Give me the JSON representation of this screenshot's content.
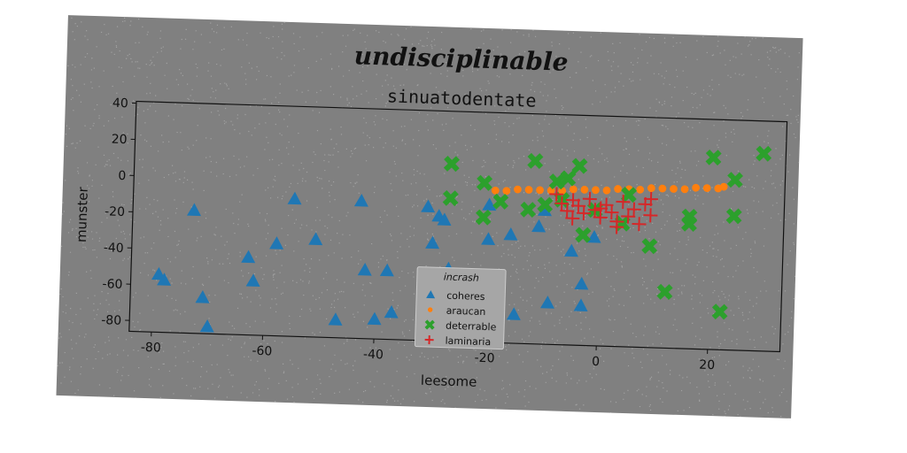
{
  "colors": {
    "card_bg": "#808080",
    "coheres": "#1f77b4",
    "araucan": "#ff7f0e",
    "deterrable": "#2ca02c",
    "laminaria": "#d62728"
  },
  "chart_data": {
    "type": "scatter",
    "suptitle": "undisciplinable",
    "title": "sinuatodentate",
    "xlabel": "leesome",
    "ylabel": "munster",
    "xlim": [
      -84,
      33
    ],
    "ylim": [
      -86,
      41
    ],
    "xticks": [
      -80,
      -60,
      -40,
      -20,
      0,
      20
    ],
    "yticks": [
      40,
      20,
      0,
      -20,
      -40,
      -60,
      -80
    ],
    "grid": false,
    "legend": {
      "title": "incrash",
      "placement": "lower center",
      "entries": [
        "coheres",
        "araucan",
        "deterrable",
        "laminaria"
      ]
    },
    "series": [
      {
        "name": "coheres",
        "marker": "triangle",
        "points": [
          [
            -79,
            -54
          ],
          [
            -78,
            -57
          ],
          [
            -73,
            -18
          ],
          [
            -71,
            -66
          ],
          [
            -70,
            -82
          ],
          [
            -63,
            -43
          ],
          [
            -62,
            -56
          ],
          [
            -58,
            -35
          ],
          [
            -55,
            -10
          ],
          [
            -51,
            -32
          ],
          [
            -47,
            -76
          ],
          [
            -43,
            -10
          ],
          [
            -42,
            -48
          ],
          [
            -40,
            -75
          ],
          [
            -38,
            -48
          ],
          [
            -37,
            -71
          ],
          [
            -31,
            -12
          ],
          [
            -30,
            -32
          ],
          [
            -29,
            -17
          ],
          [
            -28,
            -19
          ],
          [
            -27,
            -46
          ],
          [
            -20,
            -29
          ],
          [
            -20,
            -10
          ],
          [
            -16,
            -26
          ],
          [
            -15,
            -70
          ],
          [
            -11,
            -21
          ],
          [
            -10,
            -12
          ],
          [
            -9,
            -63
          ],
          [
            -5,
            -34
          ],
          [
            -3,
            -52
          ],
          [
            -3,
            -64
          ],
          [
            -1,
            -26
          ]
        ]
      },
      {
        "name": "araucan",
        "marker": "dot",
        "points": [
          [
            -19,
            -2
          ],
          [
            -17,
            -2
          ],
          [
            -15,
            -1
          ],
          [
            -13,
            -1
          ],
          [
            -11,
            -1
          ],
          [
            -9,
            -1
          ],
          [
            -7,
            -1
          ],
          [
            -5,
            0
          ],
          [
            -3,
            0
          ],
          [
            -1,
            0
          ],
          [
            1,
            0
          ],
          [
            3,
            1
          ],
          [
            5,
            1
          ],
          [
            7,
            1
          ],
          [
            9,
            2
          ],
          [
            11,
            2
          ],
          [
            13,
            2
          ],
          [
            15,
            2
          ],
          [
            17,
            3
          ],
          [
            19,
            3
          ],
          [
            21,
            3
          ],
          [
            22,
            4
          ]
        ]
      },
      {
        "name": "deterrable",
        "marker": "x",
        "points": [
          [
            -27,
            12
          ],
          [
            -27,
            -7
          ],
          [
            -21,
            2
          ],
          [
            -21,
            -17
          ],
          [
            -18,
            -8
          ],
          [
            -13,
            -12
          ],
          [
            -12,
            15
          ],
          [
            -10,
            -9
          ],
          [
            -8,
            4
          ],
          [
            -7,
            -6
          ],
          [
            -6,
            6
          ],
          [
            -4,
            13
          ],
          [
            -3,
            -25
          ],
          [
            -1,
            -11
          ],
          [
            4,
            -18
          ],
          [
            5,
            -2
          ],
          [
            9,
            -30
          ],
          [
            12,
            -55
          ],
          [
            16,
            -13
          ],
          [
            16,
            -17
          ],
          [
            20,
            20
          ],
          [
            22,
            -65
          ],
          [
            24,
            8
          ],
          [
            24,
            -12
          ],
          [
            29,
            23
          ]
        ]
      },
      {
        "name": "laminaria",
        "marker": "plus",
        "points": [
          [
            -8,
            -3
          ],
          [
            -7,
            -8
          ],
          [
            -6,
            -12
          ],
          [
            -5,
            -16
          ],
          [
            -4,
            -9
          ],
          [
            -3,
            -13
          ],
          [
            -2,
            -5
          ],
          [
            -1,
            -11
          ],
          [
            0,
            -15
          ],
          [
            1,
            -8
          ],
          [
            2,
            -12
          ],
          [
            3,
            -17
          ],
          [
            4,
            -6
          ],
          [
            5,
            -14
          ],
          [
            6,
            -10
          ],
          [
            7,
            -18
          ],
          [
            8,
            -7
          ],
          [
            9,
            -13
          ],
          [
            9,
            -4
          ],
          [
            3,
            -20
          ],
          [
            0,
            -10
          ],
          [
            -5,
            -6
          ]
        ]
      }
    ]
  }
}
